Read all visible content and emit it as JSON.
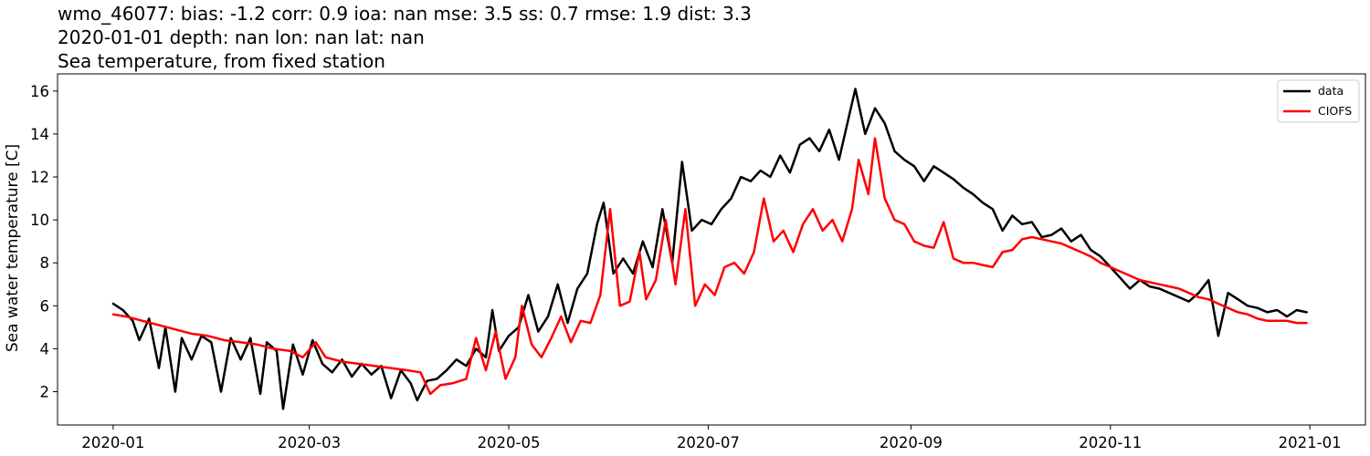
{
  "chart_data": {
    "type": "line",
    "title_lines": [
      "wmo_46077: bias: -1.2  corr: 0.9  ioa: nan  mse: 3.5  ss: 0.7  rmse: 1.9  dist: 3.3",
      "2020-01-01 depth: nan lon: nan lat: nan",
      "Sea temperature, from fixed station"
    ],
    "xlabel": "",
    "ylabel": "Sea water temperature [C]",
    "xlim": [
      "2019-12-15",
      "2021-01-18"
    ],
    "ylim": [
      0.45,
      16.8
    ],
    "x_ticks": [
      "2020-01",
      "2020-03",
      "2020-05",
      "2020-07",
      "2020-09",
      "2020-11",
      "2021-01"
    ],
    "x_tick_dates": [
      "2020-01-01",
      "2020-03-01",
      "2020-05-01",
      "2020-07-01",
      "2020-09-01",
      "2020-11-01",
      "2021-01-01"
    ],
    "y_ticks": [
      2,
      4,
      6,
      8,
      10,
      12,
      14,
      16
    ],
    "grid": false,
    "legend_position": "upper-right",
    "series": [
      {
        "name": "data",
        "color": "#000000",
        "points": [
          [
            "2020-01-01",
            6.1
          ],
          [
            "2020-01-04",
            5.8
          ],
          [
            "2020-01-07",
            5.3
          ],
          [
            "2020-01-09",
            4.4
          ],
          [
            "2020-01-12",
            5.4
          ],
          [
            "2020-01-15",
            3.1
          ],
          [
            "2020-01-17",
            5.0
          ],
          [
            "2020-01-20",
            2.0
          ],
          [
            "2020-01-22",
            4.5
          ],
          [
            "2020-01-25",
            3.5
          ],
          [
            "2020-01-28",
            4.6
          ],
          [
            "2020-01-31",
            4.3
          ],
          [
            "2020-02-03",
            2.0
          ],
          [
            "2020-02-06",
            4.5
          ],
          [
            "2020-02-09",
            3.5
          ],
          [
            "2020-02-12",
            4.5
          ],
          [
            "2020-02-15",
            1.9
          ],
          [
            "2020-02-17",
            4.3
          ],
          [
            "2020-02-20",
            3.9
          ],
          [
            "2020-02-22",
            1.2
          ],
          [
            "2020-02-25",
            4.2
          ],
          [
            "2020-02-28",
            2.8
          ],
          [
            "2020-03-02",
            4.4
          ],
          [
            "2020-03-05",
            3.3
          ],
          [
            "2020-03-08",
            2.9
          ],
          [
            "2020-03-11",
            3.5
          ],
          [
            "2020-03-14",
            2.7
          ],
          [
            "2020-03-17",
            3.3
          ],
          [
            "2020-03-20",
            2.8
          ],
          [
            "2020-03-23",
            3.2
          ],
          [
            "2020-03-26",
            1.7
          ],
          [
            "2020-03-29",
            3.0
          ],
          [
            "2020-04-01",
            2.4
          ],
          [
            "2020-04-03",
            1.6
          ],
          [
            "2020-04-06",
            2.5
          ],
          [
            "2020-04-09",
            2.6
          ],
          [
            "2020-04-12",
            3.0
          ],
          [
            "2020-04-15",
            3.5
          ],
          [
            "2020-04-18",
            3.2
          ],
          [
            "2020-04-21",
            4.0
          ],
          [
            "2020-04-24",
            3.6
          ],
          [
            "2020-04-26",
            5.8
          ],
          [
            "2020-04-28",
            3.9
          ],
          [
            "2020-05-01",
            4.6
          ],
          [
            "2020-05-04",
            5.0
          ],
          [
            "2020-05-07",
            6.5
          ],
          [
            "2020-05-10",
            4.8
          ],
          [
            "2020-05-13",
            5.5
          ],
          [
            "2020-05-16",
            7.0
          ],
          [
            "2020-05-19",
            5.2
          ],
          [
            "2020-05-22",
            6.8
          ],
          [
            "2020-05-25",
            7.5
          ],
          [
            "2020-05-28",
            9.8
          ],
          [
            "2020-05-30",
            10.8
          ],
          [
            "2020-06-02",
            7.5
          ],
          [
            "2020-06-05",
            8.2
          ],
          [
            "2020-06-08",
            7.5
          ],
          [
            "2020-06-11",
            9.0
          ],
          [
            "2020-06-14",
            7.8
          ],
          [
            "2020-06-17",
            10.5
          ],
          [
            "2020-06-20",
            8.0
          ],
          [
            "2020-06-23",
            12.7
          ],
          [
            "2020-06-26",
            9.5
          ],
          [
            "2020-06-29",
            10.0
          ],
          [
            "2020-07-02",
            9.8
          ],
          [
            "2020-07-05",
            10.5
          ],
          [
            "2020-07-08",
            11.0
          ],
          [
            "2020-07-11",
            12.0
          ],
          [
            "2020-07-14",
            11.8
          ],
          [
            "2020-07-17",
            12.3
          ],
          [
            "2020-07-20",
            12.0
          ],
          [
            "2020-07-23",
            13.0
          ],
          [
            "2020-07-26",
            12.2
          ],
          [
            "2020-07-29",
            13.5
          ],
          [
            "2020-08-01",
            13.8
          ],
          [
            "2020-08-04",
            13.2
          ],
          [
            "2020-08-07",
            14.2
          ],
          [
            "2020-08-10",
            12.8
          ],
          [
            "2020-08-13",
            14.8
          ],
          [
            "2020-08-15",
            16.1
          ],
          [
            "2020-08-18",
            14.0
          ],
          [
            "2020-08-21",
            15.2
          ],
          [
            "2020-08-24",
            14.5
          ],
          [
            "2020-08-27",
            13.2
          ],
          [
            "2020-08-30",
            12.8
          ],
          [
            "2020-09-02",
            12.5
          ],
          [
            "2020-09-05",
            11.8
          ],
          [
            "2020-09-08",
            12.5
          ],
          [
            "2020-09-11",
            12.2
          ],
          [
            "2020-09-14",
            11.9
          ],
          [
            "2020-09-17",
            11.5
          ],
          [
            "2020-09-20",
            11.2
          ],
          [
            "2020-09-23",
            10.8
          ],
          [
            "2020-09-26",
            10.5
          ],
          [
            "2020-09-29",
            9.5
          ],
          [
            "2020-10-02",
            10.2
          ],
          [
            "2020-10-05",
            9.8
          ],
          [
            "2020-10-08",
            9.9
          ],
          [
            "2020-10-11",
            9.2
          ],
          [
            "2020-10-14",
            9.3
          ],
          [
            "2020-10-17",
            9.6
          ],
          [
            "2020-10-20",
            9.0
          ],
          [
            "2020-10-23",
            9.3
          ],
          [
            "2020-10-26",
            8.6
          ],
          [
            "2020-10-29",
            8.3
          ],
          [
            "2020-11-01",
            7.8
          ],
          [
            "2020-11-04",
            7.3
          ],
          [
            "2020-11-07",
            6.8
          ],
          [
            "2020-11-10",
            7.2
          ],
          [
            "2020-11-13",
            6.9
          ],
          [
            "2020-11-16",
            6.8
          ],
          [
            "2020-11-19",
            6.6
          ],
          [
            "2020-11-22",
            6.4
          ],
          [
            "2020-11-25",
            6.2
          ],
          [
            "2020-11-28",
            6.6
          ],
          [
            "2020-12-01",
            7.2
          ],
          [
            "2020-12-04",
            4.6
          ],
          [
            "2020-12-07",
            6.6
          ],
          [
            "2020-12-10",
            6.3
          ],
          [
            "2020-12-13",
            6.0
          ],
          [
            "2020-12-16",
            5.9
          ],
          [
            "2020-12-19",
            5.7
          ],
          [
            "2020-12-22",
            5.8
          ],
          [
            "2020-12-25",
            5.5
          ],
          [
            "2020-12-28",
            5.8
          ],
          [
            "2020-12-31",
            5.7
          ]
        ]
      },
      {
        "name": "CIOFS",
        "color": "#ff0000",
        "points": [
          [
            "2020-01-01",
            5.6
          ],
          [
            "2020-01-05",
            5.5
          ],
          [
            "2020-01-10",
            5.3
          ],
          [
            "2020-01-15",
            5.1
          ],
          [
            "2020-01-20",
            4.9
          ],
          [
            "2020-01-25",
            4.7
          ],
          [
            "2020-01-30",
            4.6
          ],
          [
            "2020-02-04",
            4.4
          ],
          [
            "2020-02-09",
            4.3
          ],
          [
            "2020-02-14",
            4.2
          ],
          [
            "2020-02-19",
            4.0
          ],
          [
            "2020-02-24",
            3.9
          ],
          [
            "2020-02-28",
            3.6
          ],
          [
            "2020-03-03",
            4.3
          ],
          [
            "2020-03-06",
            3.6
          ],
          [
            "2020-03-11",
            3.4
          ],
          [
            "2020-03-16",
            3.3
          ],
          [
            "2020-03-21",
            3.2
          ],
          [
            "2020-03-26",
            3.1
          ],
          [
            "2020-03-31",
            3.0
          ],
          [
            "2020-04-04",
            2.9
          ],
          [
            "2020-04-07",
            1.9
          ],
          [
            "2020-04-10",
            2.3
          ],
          [
            "2020-04-14",
            2.4
          ],
          [
            "2020-04-18",
            2.6
          ],
          [
            "2020-04-21",
            4.5
          ],
          [
            "2020-04-24",
            3.0
          ],
          [
            "2020-04-27",
            4.8
          ],
          [
            "2020-04-30",
            2.6
          ],
          [
            "2020-05-03",
            3.6
          ],
          [
            "2020-05-05",
            6.0
          ],
          [
            "2020-05-08",
            4.2
          ],
          [
            "2020-05-11",
            3.6
          ],
          [
            "2020-05-14",
            4.5
          ],
          [
            "2020-05-17",
            5.5
          ],
          [
            "2020-05-20",
            4.3
          ],
          [
            "2020-05-23",
            5.3
          ],
          [
            "2020-05-26",
            5.2
          ],
          [
            "2020-05-29",
            6.5
          ],
          [
            "2020-06-01",
            10.5
          ],
          [
            "2020-06-04",
            6.0
          ],
          [
            "2020-06-07",
            6.2
          ],
          [
            "2020-06-10",
            8.5
          ],
          [
            "2020-06-12",
            6.3
          ],
          [
            "2020-06-15",
            7.2
          ],
          [
            "2020-06-18",
            10.0
          ],
          [
            "2020-06-21",
            7.0
          ],
          [
            "2020-06-24",
            10.5
          ],
          [
            "2020-06-27",
            6.0
          ],
          [
            "2020-06-30",
            7.0
          ],
          [
            "2020-07-03",
            6.5
          ],
          [
            "2020-07-06",
            7.8
          ],
          [
            "2020-07-09",
            8.0
          ],
          [
            "2020-07-12",
            7.5
          ],
          [
            "2020-07-15",
            8.5
          ],
          [
            "2020-07-18",
            11.0
          ],
          [
            "2020-07-21",
            9.0
          ],
          [
            "2020-07-24",
            9.5
          ],
          [
            "2020-07-27",
            8.5
          ],
          [
            "2020-07-30",
            9.8
          ],
          [
            "2020-08-02",
            10.5
          ],
          [
            "2020-08-05",
            9.5
          ],
          [
            "2020-08-08",
            10.0
          ],
          [
            "2020-08-11",
            9.0
          ],
          [
            "2020-08-14",
            10.5
          ],
          [
            "2020-08-16",
            12.8
          ],
          [
            "2020-08-19",
            11.2
          ],
          [
            "2020-08-21",
            13.8
          ],
          [
            "2020-08-24",
            11.0
          ],
          [
            "2020-08-27",
            10.0
          ],
          [
            "2020-08-30",
            9.8
          ],
          [
            "2020-09-02",
            9.0
          ],
          [
            "2020-09-05",
            8.8
          ],
          [
            "2020-09-08",
            8.7
          ],
          [
            "2020-09-11",
            9.9
          ],
          [
            "2020-09-14",
            8.2
          ],
          [
            "2020-09-17",
            8.0
          ],
          [
            "2020-09-20",
            8.0
          ],
          [
            "2020-09-23",
            7.9
          ],
          [
            "2020-09-26",
            7.8
          ],
          [
            "2020-09-29",
            8.5
          ],
          [
            "2020-10-02",
            8.6
          ],
          [
            "2020-10-05",
            9.1
          ],
          [
            "2020-10-08",
            9.2
          ],
          [
            "2020-10-11",
            9.1
          ],
          [
            "2020-10-14",
            9.0
          ],
          [
            "2020-10-17",
            8.9
          ],
          [
            "2020-10-20",
            8.7
          ],
          [
            "2020-10-23",
            8.5
          ],
          [
            "2020-10-26",
            8.3
          ],
          [
            "2020-10-29",
            8.0
          ],
          [
            "2020-11-01",
            7.8
          ],
          [
            "2020-11-04",
            7.6
          ],
          [
            "2020-11-07",
            7.4
          ],
          [
            "2020-11-10",
            7.2
          ],
          [
            "2020-11-13",
            7.1
          ],
          [
            "2020-11-16",
            7.0
          ],
          [
            "2020-11-19",
            6.9
          ],
          [
            "2020-11-22",
            6.8
          ],
          [
            "2020-11-25",
            6.6
          ],
          [
            "2020-11-28",
            6.4
          ],
          [
            "2020-12-01",
            6.3
          ],
          [
            "2020-12-04",
            6.1
          ],
          [
            "2020-12-07",
            5.9
          ],
          [
            "2020-12-10",
            5.7
          ],
          [
            "2020-12-13",
            5.6
          ],
          [
            "2020-12-16",
            5.4
          ],
          [
            "2020-12-19",
            5.3
          ],
          [
            "2020-12-22",
            5.3
          ],
          [
            "2020-12-25",
            5.3
          ],
          [
            "2020-12-28",
            5.2
          ],
          [
            "2020-12-31",
            5.2
          ]
        ]
      }
    ]
  }
}
